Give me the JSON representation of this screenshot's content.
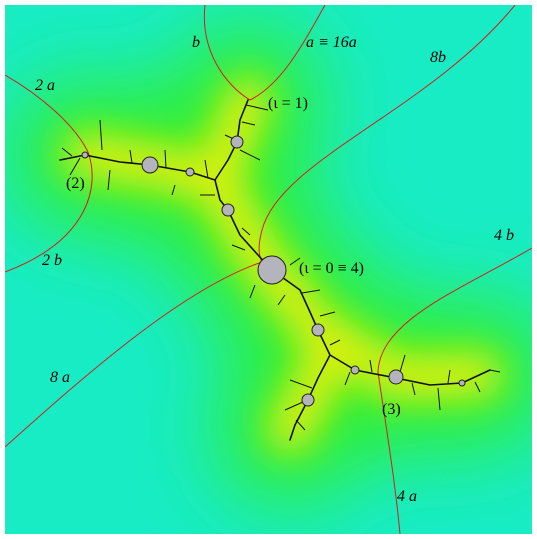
{
  "labels": {
    "b": "b",
    "a16a": "a ≡ 16a",
    "b8": "8b",
    "a2": "2 a",
    "iota1": "(ι = 1)",
    "p2": "(2)",
    "b2": "2 b",
    "iota0": "(ι = 0 ≡ 4)",
    "b4": "4 b",
    "a8": "8 a",
    "p3": "(3)",
    "a4": "4 a"
  }
}
